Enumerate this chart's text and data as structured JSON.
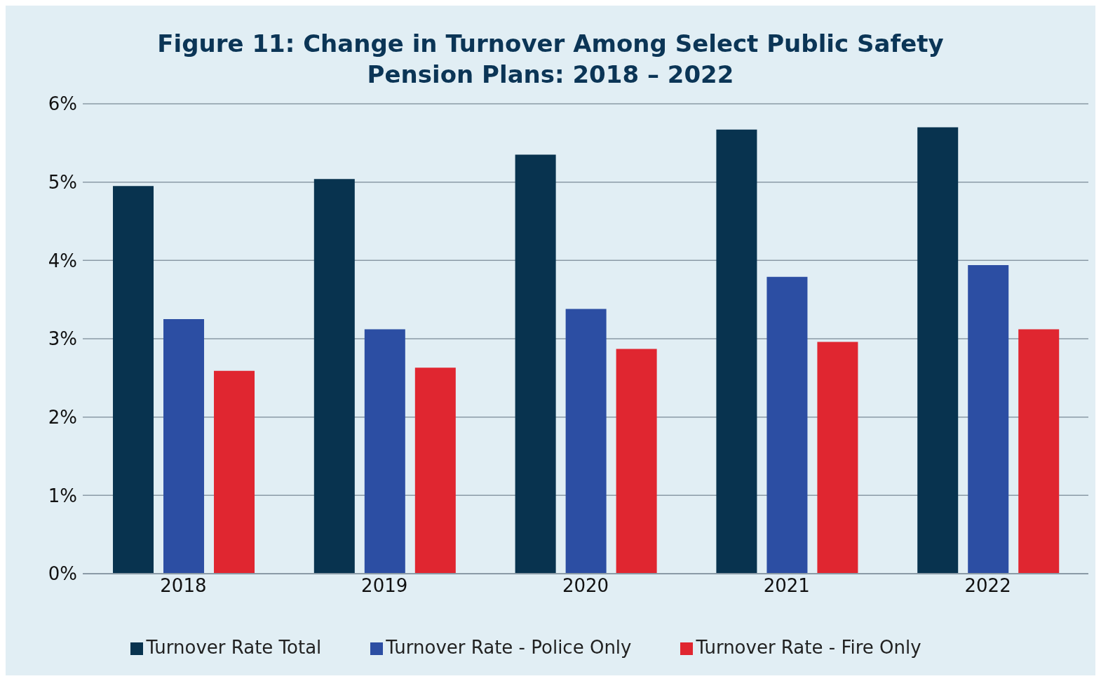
{
  "chart_data": {
    "type": "bar",
    "title": "Figure 11: Change in Turnover Among Select Public Safety Pension Plans: 2018 – 2022",
    "categories": [
      "2018",
      "2019",
      "2020",
      "2021",
      "2022"
    ],
    "series": [
      {
        "name": "Turnover Rate Total",
        "color": "#08334f",
        "values": [
          4.95,
          5.04,
          5.35,
          5.67,
          5.7
        ]
      },
      {
        "name": "Turnover Rate - Police Only",
        "color": "#2c4ea3",
        "values": [
          3.25,
          3.12,
          3.38,
          3.79,
          3.94
        ]
      },
      {
        "name": "Turnover Rate - Fire Only",
        "color": "#e02630",
        "values": [
          2.59,
          2.63,
          2.87,
          2.96,
          3.12
        ]
      }
    ],
    "ylim": [
      0,
      6
    ],
    "yticks": [
      {
        "value": 0,
        "label": "0%"
      },
      {
        "value": 1,
        "label": "1%"
      },
      {
        "value": 2,
        "label": "2%"
      },
      {
        "value": 3,
        "label": "3%"
      },
      {
        "value": 4,
        "label": "4%"
      },
      {
        "value": 5,
        "label": "5%"
      },
      {
        "value": 6,
        "label": "6%"
      }
    ],
    "grid": "y",
    "legend": "bottom"
  }
}
